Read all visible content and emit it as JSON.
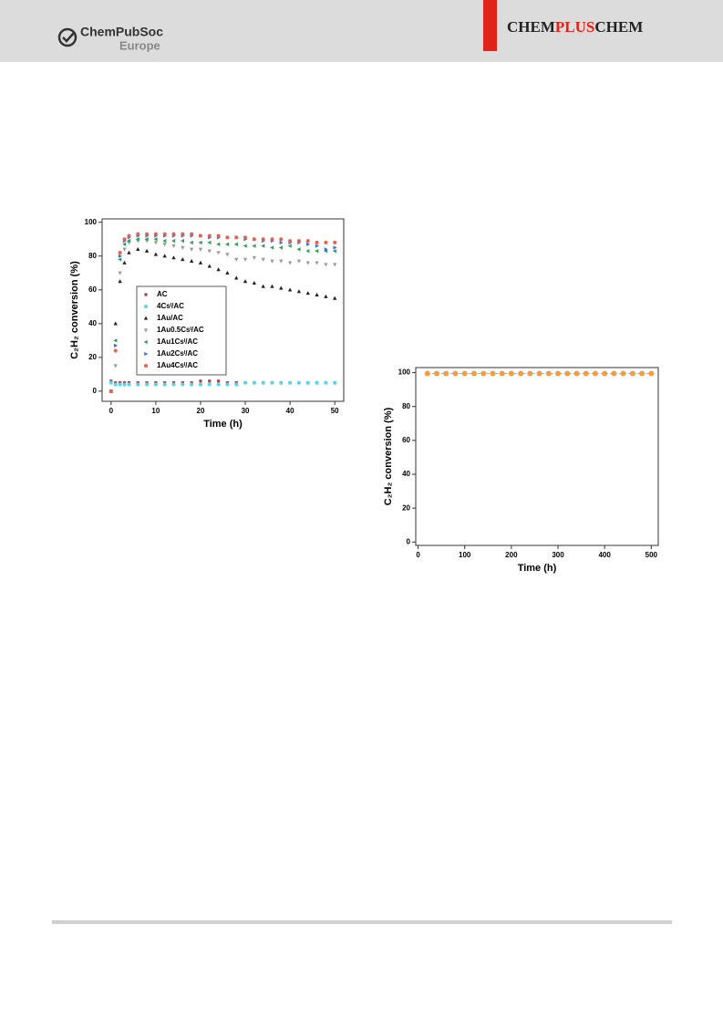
{
  "header": {
    "publisher": "ChemPubSoc",
    "publisher_region": "Europe",
    "journal": [
      "CHEM",
      "PLUS",
      "CHEM"
    ]
  },
  "chart_data": [
    {
      "type": "scatter",
      "x_label": "Time (h)",
      "y_label": "C₂H₂ conversion (%)",
      "xlim": [
        -2,
        52
      ],
      "ylim": [
        -6,
        102
      ],
      "xticks": [
        0,
        10,
        20,
        30,
        40,
        50
      ],
      "yticks": [
        0,
        20,
        40,
        60,
        80,
        100
      ],
      "legend": "center-left",
      "x": [
        0,
        1,
        2,
        3,
        4,
        6,
        8,
        10,
        12,
        14,
        16,
        18,
        20,
        22,
        24,
        26,
        28,
        30,
        32,
        34,
        36,
        38,
        40,
        42,
        44,
        46,
        48,
        50
      ],
      "series": [
        {
          "name": "AC",
          "color": "#9b4a55",
          "marker": "square",
          "values": [
            6,
            5,
            5,
            5,
            5,
            5,
            5,
            5,
            5,
            5,
            5,
            5,
            6,
            6,
            6,
            5,
            5,
            5,
            5,
            5,
            5,
            5,
            5,
            5,
            5,
            5,
            5,
            5
          ]
        },
        {
          "name": "4Csᴵ/AC",
          "color": "#5fd0e0",
          "marker": "circle",
          "values": [
            5,
            4,
            4,
            4,
            4,
            4,
            4,
            4,
            4,
            4,
            4,
            4,
            4,
            4,
            4,
            4,
            4,
            5,
            5,
            5,
            5,
            5,
            5,
            5,
            5,
            5,
            5,
            5
          ]
        },
        {
          "name": "1Au/AC",
          "color": "#222222",
          "marker": "triangle-up",
          "values": [
            0,
            40,
            65,
            76,
            82,
            84,
            83,
            81,
            80,
            79,
            78,
            77,
            76,
            74,
            72,
            70,
            67,
            65,
            64,
            62,
            62,
            61,
            60,
            59,
            58,
            57,
            56,
            55
          ]
        },
        {
          "name": "1Au0.5Csᴵ/AC",
          "color": "#999999",
          "marker": "triangle-down",
          "values": [
            0,
            15,
            70,
            84,
            88,
            89,
            89,
            88,
            87,
            86,
            85,
            84,
            84,
            83,
            82,
            81,
            78,
            78,
            79,
            78,
            77,
            77,
            76,
            77,
            76,
            76,
            75,
            75
          ]
        },
        {
          "name": "1Au1Csᴵ/AC",
          "color": "#2e9e55",
          "marker": "triangle-left",
          "values": [
            0,
            30,
            78,
            87,
            89,
            90,
            90,
            90,
            89,
            89,
            89,
            88,
            88,
            88,
            87,
            87,
            87,
            86,
            86,
            86,
            85,
            85,
            86,
            84,
            83,
            83,
            83,
            83
          ]
        },
        {
          "name": "1Au2Csᴵ/AC",
          "color": "#3a6fd0",
          "marker": "triangle-right",
          "values": [
            0,
            27,
            80,
            89,
            91,
            92,
            92,
            92,
            92,
            92,
            92,
            92,
            92,
            91,
            91,
            91,
            91,
            90,
            90,
            89,
            89,
            88,
            88,
            88,
            87,
            86,
            84,
            85
          ]
        },
        {
          "name": "1Au4Csᴵ/AC",
          "color": "#e8604c",
          "marker": "circle",
          "values": [
            0,
            24,
            82,
            90,
            92,
            93,
            93,
            93,
            93,
            93,
            93,
            93,
            92,
            92,
            92,
            91,
            91,
            91,
            90,
            90,
            90,
            90,
            89,
            89,
            89,
            88,
            88,
            88
          ]
        }
      ]
    },
    {
      "type": "line",
      "x_label": "Time (h)",
      "y_label": "C₂H₂ conversion (%)",
      "xlim": [
        -5,
        515
      ],
      "ylim": [
        -2,
        103
      ],
      "xticks": [
        0,
        100,
        200,
        300,
        400,
        500
      ],
      "yticks": [
        0,
        20,
        40,
        60,
        80,
        100
      ],
      "x": [
        20,
        40,
        60,
        80,
        100,
        120,
        140,
        160,
        180,
        200,
        220,
        240,
        260,
        280,
        300,
        320,
        340,
        360,
        380,
        400,
        420,
        440,
        460,
        480,
        500
      ],
      "series": [
        {
          "color": "#f39c40",
          "marker": "circle",
          "values": [
            99.5,
            99.5,
            99.5,
            99.5,
            99.5,
            99.5,
            99.5,
            99.5,
            99.5,
            99.5,
            99.5,
            99.5,
            99.5,
            99.5,
            99.5,
            99.5,
            99.5,
            99.5,
            99.5,
            99.5,
            99.5,
            99.5,
            99.5,
            99.5,
            99.5
          ]
        }
      ]
    }
  ]
}
